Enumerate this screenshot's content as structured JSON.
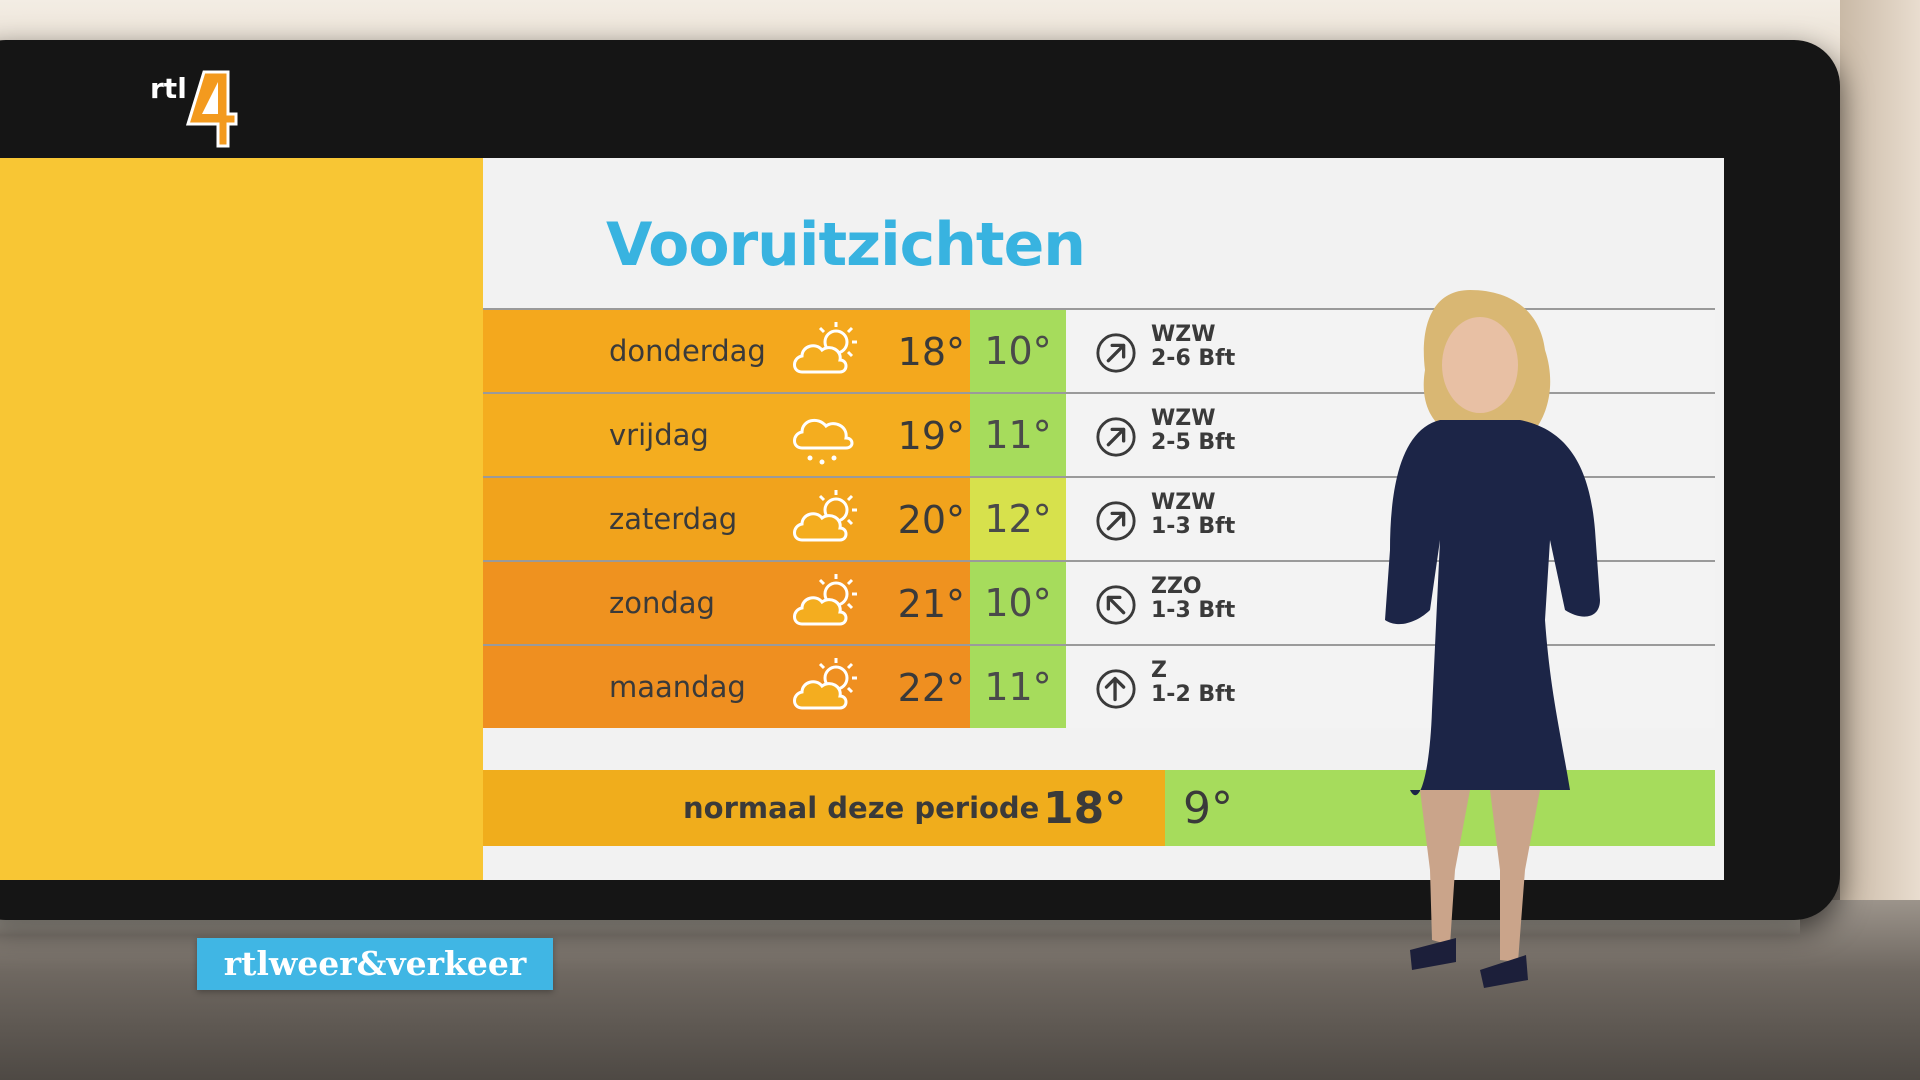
{
  "channel": {
    "logo_text": "rtl",
    "logo_number": "4"
  },
  "brand_badge": "rtlweer&verkeer",
  "title": "Vooruitzichten",
  "colors": {
    "title": "#38b3e0",
    "side_panel": "#f8c634",
    "badge": "#40b6e4",
    "min_temp_green": "#a6dc5c",
    "min_temp_yellow": "#d7e14c"
  },
  "forecast": [
    {
      "day": "donderdag",
      "icon": "sun-behind-cloud-icon",
      "max": "18°",
      "min": "10°",
      "wind_dir": "WZW",
      "wind_force": "2-6 Bft",
      "wind_arrow": "arrow-northeast-icon",
      "max_color": "#f4a81d",
      "min_color": "#a6dc5c"
    },
    {
      "day": "vrijdag",
      "icon": "rain-cloud-icon",
      "max": "19°",
      "min": "11°",
      "wind_dir": "WZW",
      "wind_force": "2-5 Bft",
      "wind_arrow": "arrow-northeast-icon",
      "max_color": "#f4ad1f",
      "min_color": "#a6dc5c"
    },
    {
      "day": "zaterdag",
      "icon": "sun-behind-cloud-icon",
      "max": "20°",
      "min": "12°",
      "wind_dir": "WZW",
      "wind_force": "1-3 Bft",
      "wind_arrow": "arrow-northeast-icon",
      "max_color": "#f1a31c",
      "min_color": "#d7e14c"
    },
    {
      "day": "zondag",
      "icon": "sun-behind-cloud-icon",
      "max": "21°",
      "min": "10°",
      "wind_dir": "ZZO",
      "wind_force": "1-3 Bft",
      "wind_arrow": "arrow-northwest-icon",
      "max_color": "#ef921f",
      "min_color": "#a6dc5c"
    },
    {
      "day": "maandag",
      "icon": "sun-behind-cloud-icon",
      "max": "22°",
      "min": "11°",
      "wind_dir": "Z",
      "wind_force": "1-2 Bft",
      "wind_arrow": "arrow-north-icon",
      "max_color": "#ef8f20",
      "min_color": "#a6dc5c"
    }
  ],
  "normal": {
    "label": "normaal deze periode",
    "max": "18°",
    "min": "9°"
  }
}
